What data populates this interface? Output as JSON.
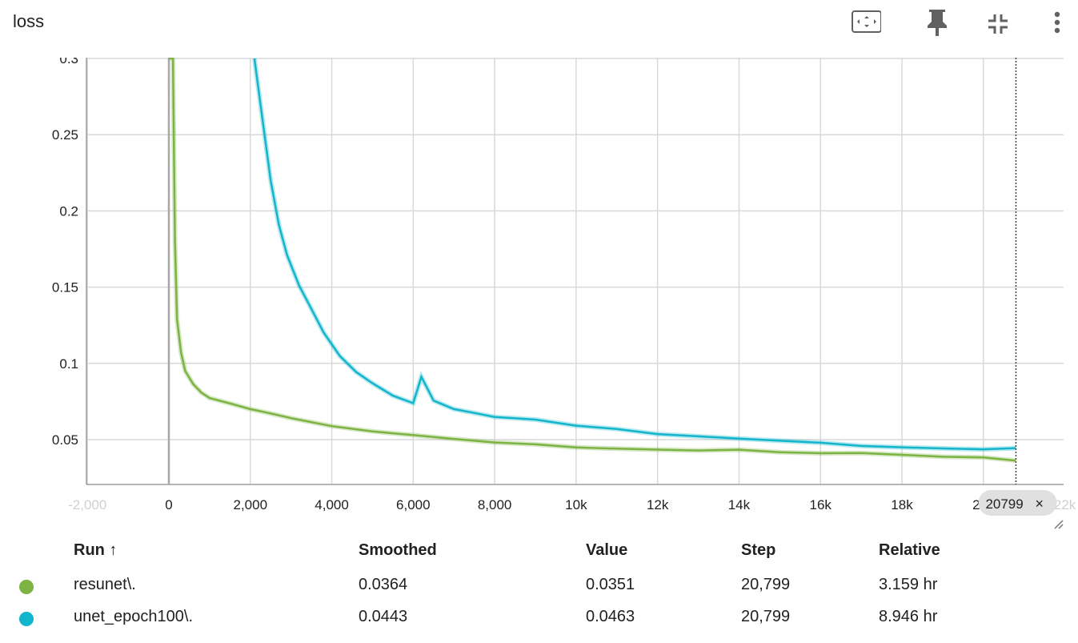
{
  "card": {
    "title": "loss"
  },
  "toolbar": {
    "icons": [
      "fit-domain-icon",
      "pin-icon",
      "collapse-icon",
      "more-vert-icon"
    ]
  },
  "colors": {
    "resunet": "#7cb342",
    "unet": "#12b5cb",
    "grid": "#d9d9d9"
  },
  "chart_data": {
    "type": "line",
    "xlabel": "",
    "ylabel": "",
    "xlim": [
      -2000,
      22500
    ],
    "ylim": [
      0.02,
      0.3
    ],
    "grid": true,
    "x_ticks": [
      "-2,000",
      "0",
      "2,000",
      "4,000",
      "6,000",
      "8,000",
      "10k",
      "12k",
      "14k",
      "16k",
      "18k",
      "20k",
      "22k"
    ],
    "y_ticks": [
      "0.05",
      "0.1",
      "0.15",
      "0.2",
      "0.25",
      "0.3"
    ],
    "hover_step": 20799,
    "hover_label": "20799",
    "series": [
      {
        "name": "resunet\\.",
        "color": "#7cb342",
        "x": [
          0,
          100,
          150,
          200,
          300,
          400,
          600,
          800,
          1000,
          1500,
          2000,
          2500,
          3000,
          4000,
          5000,
          6000,
          7000,
          8000,
          9000,
          10000,
          11000,
          12000,
          13000,
          14000,
          15000,
          16000,
          17000,
          18000,
          19000,
          20000,
          20799
        ],
        "y": [
          0.3,
          0.3,
          0.18,
          0.13,
          0.108,
          0.096,
          0.087,
          0.081,
          0.077,
          0.073,
          0.069,
          0.066,
          0.063,
          0.058,
          0.055,
          0.053,
          0.051,
          0.049,
          0.048,
          0.046,
          0.045,
          0.044,
          0.043,
          0.043,
          0.041,
          0.04,
          0.04,
          0.039,
          0.038,
          0.038,
          0.0364
        ]
      },
      {
        "name": "unet_epoch100\\.",
        "color": "#12b5cb",
        "x": [
          2100,
          2300,
          2500,
          2700,
          2900,
          3200,
          3500,
          3800,
          4200,
          4600,
          5000,
          5500,
          6000,
          6200,
          6500,
          7000,
          7500,
          8000,
          9000,
          10000,
          11000,
          12000,
          13000,
          14000,
          15000,
          16000,
          17000,
          18000,
          19000,
          20000,
          20799
        ],
        "y": [
          0.3,
          0.26,
          0.22,
          0.19,
          0.17,
          0.15,
          0.135,
          0.12,
          0.105,
          0.095,
          0.088,
          0.08,
          0.075,
          0.092,
          0.076,
          0.07,
          0.067,
          0.064,
          0.062,
          0.058,
          0.056,
          0.053,
          0.052,
          0.051,
          0.05,
          0.049,
          0.047,
          0.046,
          0.045,
          0.044,
          0.0443
        ]
      }
    ]
  },
  "table": {
    "headers": {
      "run": "Run ↑",
      "smoothed": "Smoothed",
      "value": "Value",
      "step": "Step",
      "relative": "Relative"
    },
    "rows": [
      {
        "run": "resunet\\.",
        "smoothed": "0.0364",
        "value": "0.0351",
        "step": "20,799",
        "relative": "3.159 hr",
        "color": "#7cb342"
      },
      {
        "run": "unet_epoch100\\.",
        "smoothed": "0.0443",
        "value": "0.0463",
        "step": "20,799",
        "relative": "8.946 hr",
        "color": "#12b5cb"
      }
    ]
  }
}
